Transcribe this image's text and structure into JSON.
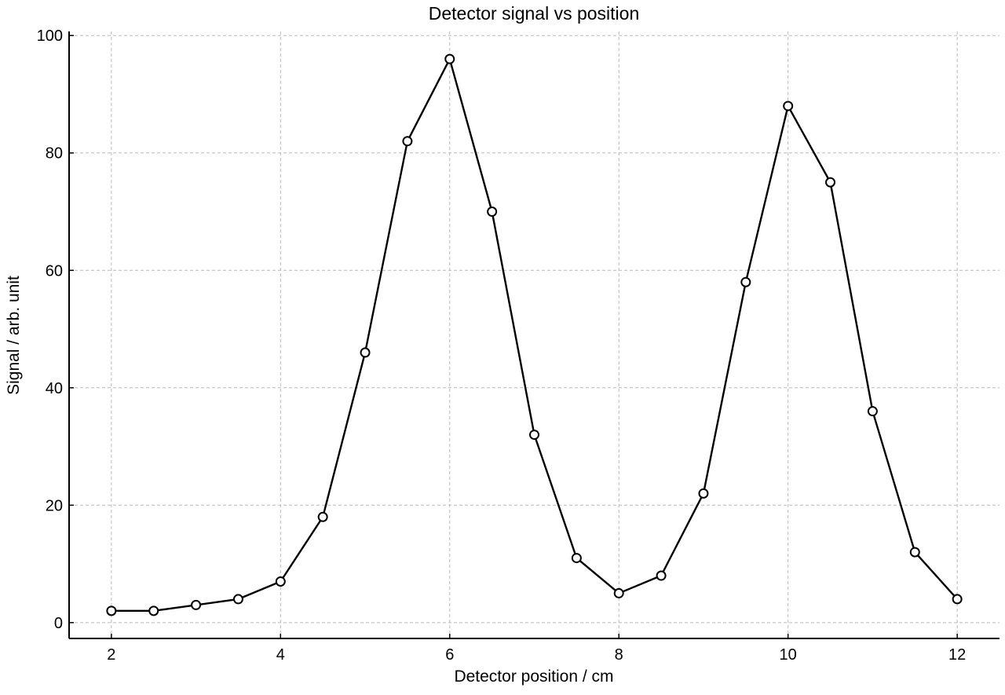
{
  "chart_data": {
    "type": "line",
    "title": "Detector signal vs position",
    "xlabel": "Detector position / cm",
    "ylabel": "Signal / arb. unit",
    "xlim": [
      1.5,
      12.5
    ],
    "ylim": [
      -2.7,
      100.7
    ],
    "xticks": [
      2,
      4,
      6,
      8,
      10,
      12
    ],
    "yticks": [
      0,
      20,
      40,
      60,
      80,
      100
    ],
    "grid": true,
    "legend": "none",
    "series": [
      {
        "x": [
          2,
          2.5,
          3,
          3.5,
          4,
          4.5,
          5,
          5.5,
          6,
          6.5,
          7,
          7.5,
          8,
          8.5,
          9,
          9.5,
          10,
          10.5,
          11,
          11.5,
          12
        ],
        "y": [
          2,
          2,
          3,
          4,
          7,
          18,
          46,
          82,
          96,
          70,
          32,
          11,
          5,
          8,
          22,
          58,
          88,
          75,
          36,
          12,
          4
        ]
      }
    ],
    "colors": {
      "line": "#000000",
      "marker_face": "#ffffff",
      "grid": "#b9b9b9"
    }
  }
}
